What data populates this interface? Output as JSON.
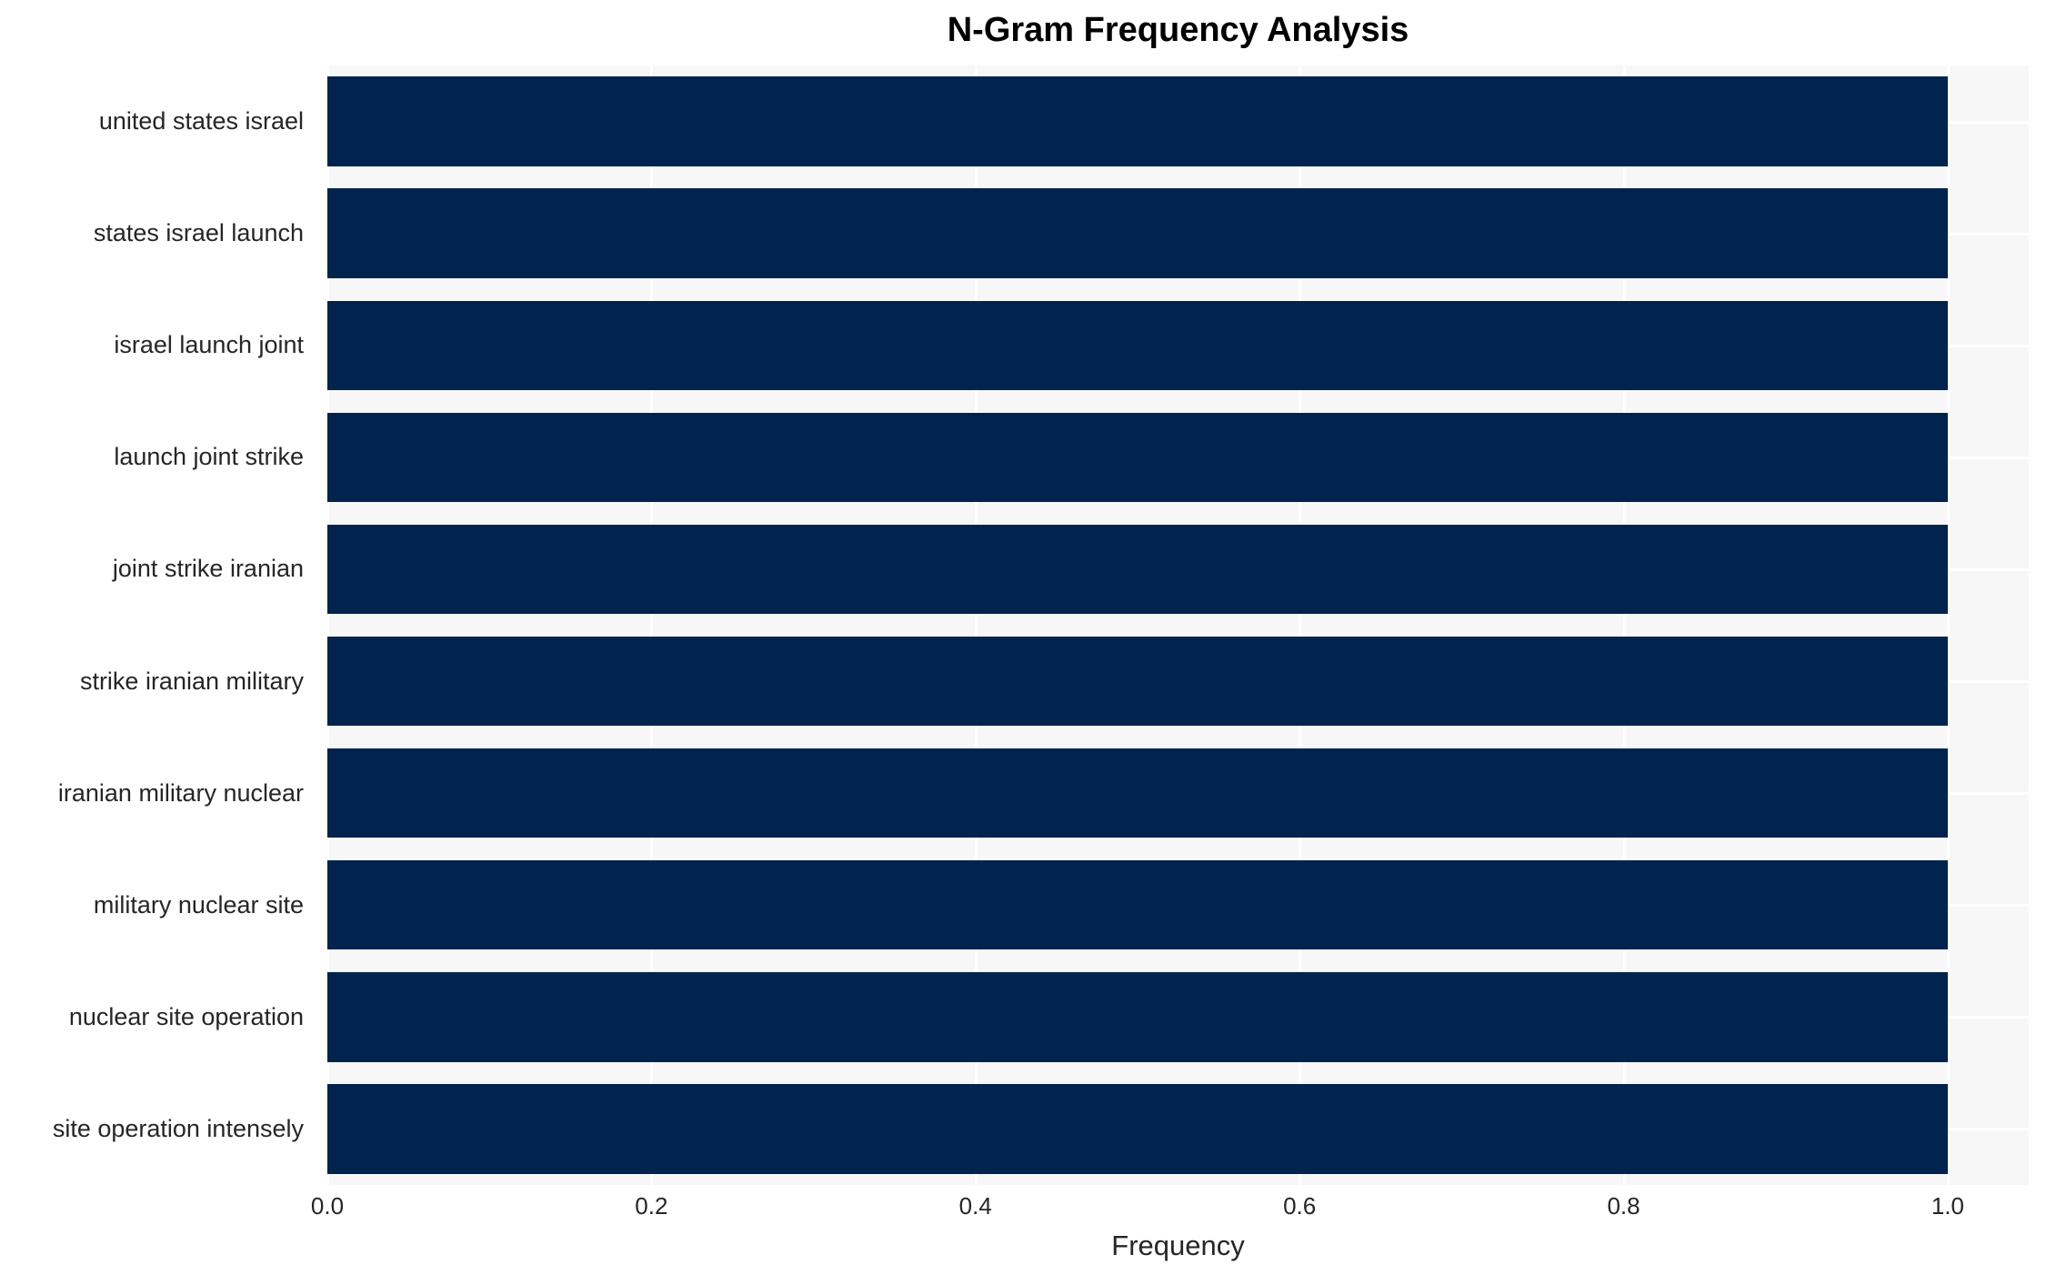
{
  "chart_data": {
    "type": "bar",
    "orientation": "horizontal",
    "title": "N-Gram Frequency Analysis",
    "xlabel": "Frequency",
    "ylabel": "",
    "categories": [
      "united states israel",
      "states israel launch",
      "israel launch joint",
      "launch joint strike",
      "joint strike iranian",
      "strike iranian military",
      "iranian military nuclear",
      "military nuclear site",
      "nuclear site operation",
      "site operation intensely"
    ],
    "values": [
      1.0,
      1.0,
      1.0,
      1.0,
      1.0,
      1.0,
      1.0,
      1.0,
      1.0,
      1.0
    ],
    "x_ticks": [
      "0.0",
      "0.2",
      "0.4",
      "0.6",
      "0.8",
      "1.0"
    ],
    "x_tick_values": [
      0.0,
      0.2,
      0.4,
      0.6,
      0.8,
      1.0
    ],
    "xlim": [
      0,
      1.05
    ],
    "grid": true,
    "legend": null,
    "bar_height_fraction": 0.8,
    "colors": {
      "bar": "#01244E",
      "plot_background": "#F7F7F7",
      "gridline": "#FFFFFF",
      "figure_background": "#FFFFFF",
      "title_text": "#000000",
      "label_text": "#262626"
    }
  }
}
